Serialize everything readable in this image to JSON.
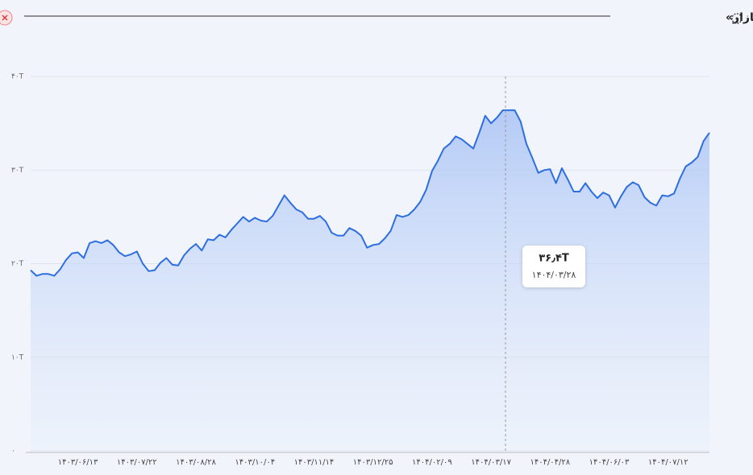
{
  "chart_data": {
    "type": "area",
    "title": "تاریخچه «ارزش بازار»",
    "categories": [
      null,
      null,
      null,
      null,
      null,
      null,
      null,
      null,
      "۱۴۰۳/۰۶/۱۳",
      null,
      null,
      null,
      null,
      null,
      null,
      null,
      null,
      null,
      "۱۴۰۳/۰۷/۲۲",
      null,
      null,
      null,
      null,
      null,
      null,
      null,
      null,
      null,
      "۱۴۰۳/۰۸/۲۸",
      null,
      null,
      null,
      null,
      null,
      null,
      null,
      null,
      null,
      "۱۴۰۳/۱۰/۰۴",
      null,
      null,
      null,
      null,
      null,
      null,
      null,
      null,
      null,
      "۱۴۰۳/۱۱/۱۴",
      null,
      null,
      null,
      null,
      null,
      null,
      null,
      null,
      null,
      "۱۴۰۳/۱۲/۲۵",
      null,
      null,
      null,
      null,
      null,
      null,
      null,
      null,
      null,
      "۱۴۰۴/۰۲/۰۹",
      null,
      null,
      null,
      null,
      null,
      null,
      null,
      null,
      null,
      "۱۴۰۴/۰۳/۱۷",
      null,
      null,
      null,
      null,
      null,
      null,
      null,
      null,
      null,
      "۱۴۰۴/۰۴/۲۸",
      null,
      null,
      null,
      null,
      null,
      null,
      null,
      null,
      null,
      "۱۴۰۴/۰۶/۰۳",
      null,
      null,
      null,
      null,
      null,
      null,
      null,
      null,
      null,
      "۱۴۰۴/۰۷/۱۲",
      null,
      null,
      null,
      null,
      null,
      null,
      null
    ],
    "values": [
      19.3,
      18.7,
      18.9,
      18.9,
      18.7,
      19.4,
      20.4,
      21.1,
      21.2,
      20.6,
      22.2,
      22.4,
      22.2,
      22.5,
      22.0,
      21.2,
      20.8,
      21.0,
      21.3,
      20.0,
      19.2,
      19.3,
      20.1,
      20.6,
      19.9,
      19.8,
      20.9,
      21.6,
      22.1,
      21.4,
      22.6,
      22.5,
      23.1,
      22.8,
      23.6,
      24.3,
      25.0,
      24.5,
      24.9,
      24.6,
      24.5,
      25.1,
      26.2,
      27.3,
      26.5,
      25.8,
      25.5,
      24.8,
      24.8,
      25.1,
      24.5,
      23.3,
      23.0,
      23.0,
      23.8,
      23.5,
      23.0,
      21.7,
      22.0,
      22.1,
      22.7,
      23.5,
      25.2,
      25.0,
      25.2,
      25.8,
      26.6,
      27.9,
      29.9,
      31.0,
      32.3,
      32.8,
      33.6,
      33.3,
      32.8,
      32.3,
      34.0,
      35.8,
      35.0,
      35.6,
      36.4,
      36.4,
      36.4,
      35.2,
      32.8,
      31.3,
      29.7,
      30.0,
      30.1,
      28.6,
      30.2,
      29.0,
      27.7,
      27.7,
      28.6,
      27.7,
      27.0,
      27.6,
      27.3,
      26.0,
      27.2,
      28.2,
      28.7,
      28.4,
      27.1,
      26.5,
      26.2,
      27.3,
      27.2,
      27.5,
      29.1,
      30.4,
      30.8,
      31.4,
      33.1,
      34.0
    ],
    "color": "#2d6ee0",
    "ylim": [
      0,
      40
    ],
    "yticks": [
      {
        "value": 0,
        "label": "۰"
      },
      {
        "value": 10,
        "label": "۱۰T"
      },
      {
        "value": 20,
        "label": "۲۰T"
      },
      {
        "value": 30,
        "label": "۳۰T"
      },
      {
        "value": 40,
        "label": "۴۰T"
      }
    ],
    "grid": true,
    "tooltip": {
      "label": "۳۶٫۴T",
      "date": "۱۴۰۴/۰۳/۲۸"
    }
  }
}
